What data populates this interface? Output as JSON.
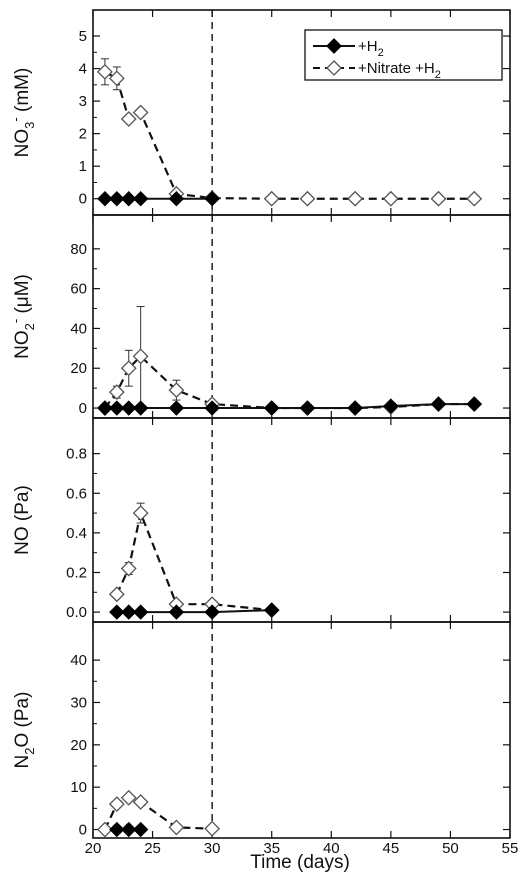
{
  "chart_data": {
    "type": "line",
    "x_axis": {
      "label": "Time (days)",
      "range": [
        20,
        55
      ],
      "ticks": [
        20,
        25,
        30,
        35,
        40,
        45,
        50,
        55
      ],
      "tick_labels": [
        "20",
        "25",
        "30",
        "35",
        "40",
        "45",
        "50",
        "55"
      ]
    },
    "reference_line_x": 30,
    "legend": {
      "position": "top-right",
      "entries": [
        {
          "series": "H2",
          "label_main": "+H",
          "label_sub": "2",
          "label_rest": ""
        },
        {
          "series": "nitrate_h2",
          "label_main": "+Nitrate +H",
          "label_sub": "2",
          "label_rest": ""
        }
      ]
    },
    "panels": [
      {
        "id": "no3",
        "ylabel_parts": [
          "NO",
          "3",
          "-",
          " (mM)"
        ],
        "ylim": [
          -0.5,
          5.8
        ],
        "yticks": [
          0,
          1,
          2,
          3,
          4,
          5
        ],
        "ytick_labels": [
          "0",
          "1",
          "2",
          "3",
          "4",
          "5"
        ],
        "series": [
          {
            "key": "H2",
            "style": "solid-filled",
            "x": [
              21,
              22,
              23,
              24,
              27,
              30
            ],
            "y": [
              0,
              0,
              0,
              0,
              0,
              0
            ]
          },
          {
            "key": "nitrate_h2",
            "style": "dashed-open",
            "x": [
              21,
              22,
              23,
              24,
              27,
              30,
              35,
              38,
              42,
              45,
              49,
              52
            ],
            "y": [
              3.9,
              3.7,
              2.45,
              2.65,
              0.15,
              0.02,
              0,
              0,
              0,
              0,
              0,
              0
            ],
            "err": [
              0.4,
              0.35,
              0,
              0,
              0,
              0,
              0,
              0,
              0,
              0,
              0,
              0
            ]
          }
        ]
      },
      {
        "id": "no2",
        "ylabel_parts": [
          "NO",
          "2",
          "-",
          " (μM)"
        ],
        "ylim": [
          -5,
          97
        ],
        "yticks": [
          0,
          20,
          40,
          60,
          80
        ],
        "ytick_labels": [
          "0",
          "20",
          "40",
          "60",
          "80"
        ],
        "series": [
          {
            "key": "H2",
            "style": "solid-filled",
            "x": [
              21,
              22,
              23,
              24,
              27,
              30,
              35,
              38,
              42,
              45,
              49,
              52
            ],
            "y": [
              0,
              0,
              0,
              0,
              0,
              0,
              0,
              0,
              0,
              1,
              2,
              2
            ]
          },
          {
            "key": "nitrate_h2",
            "style": "dashed-open",
            "x": [
              21,
              22,
              23,
              24,
              27,
              30,
              35,
              38,
              42,
              45,
              49,
              52
            ],
            "y": [
              0,
              8,
              20,
              26,
              9,
              2,
              0,
              0,
              0,
              0.5,
              2,
              2
            ],
            "err": [
              0,
              3,
              9,
              25,
              5,
              0,
              0,
              0,
              0,
              0,
              0,
              0
            ]
          }
        ]
      },
      {
        "id": "no",
        "ylabel_parts": [
          "NO (Pa)"
        ],
        "ylim": [
          -0.05,
          0.98
        ],
        "yticks": [
          0,
          0.2,
          0.4,
          0.6,
          0.8
        ],
        "ytick_labels": [
          "0.0",
          "0.2",
          "0.4",
          "0.6",
          "0.8"
        ],
        "series": [
          {
            "key": "H2",
            "style": "solid-filled",
            "x": [
              22,
              23,
              24,
              27,
              30,
              35
            ],
            "y": [
              0,
              0,
              0,
              0,
              0,
              0.01
            ]
          },
          {
            "key": "nitrate_h2",
            "style": "dashed-open",
            "x": [
              22,
              23,
              24,
              27,
              30,
              35
            ],
            "y": [
              0.09,
              0.22,
              0.5,
              0.04,
              0.04,
              0.01
            ],
            "err": [
              0,
              0.03,
              0.05,
              0,
              0,
              0
            ]
          }
        ]
      },
      {
        "id": "n2o",
        "ylabel_parts": [
          "N",
          "2",
          "",
          "O (Pa)"
        ],
        "ylim": [
          -2,
          49
        ],
        "yticks": [
          0,
          10,
          20,
          30,
          40
        ],
        "ytick_labels": [
          "0",
          "10",
          "20",
          "30",
          "40"
        ],
        "series": [
          {
            "key": "H2",
            "style": "solid-filled",
            "x": [
              22,
              23,
              24
            ],
            "y": [
              0,
              0,
              0
            ]
          },
          {
            "key": "nitrate_h2",
            "style": "dashed-open",
            "x": [
              21,
              22,
              23,
              24,
              27,
              30
            ],
            "y": [
              0,
              6,
              7.5,
              6.5,
              0.5,
              0.2
            ],
            "err": [
              0,
              0,
              0,
              0,
              0,
              0
            ]
          }
        ]
      }
    ]
  }
}
